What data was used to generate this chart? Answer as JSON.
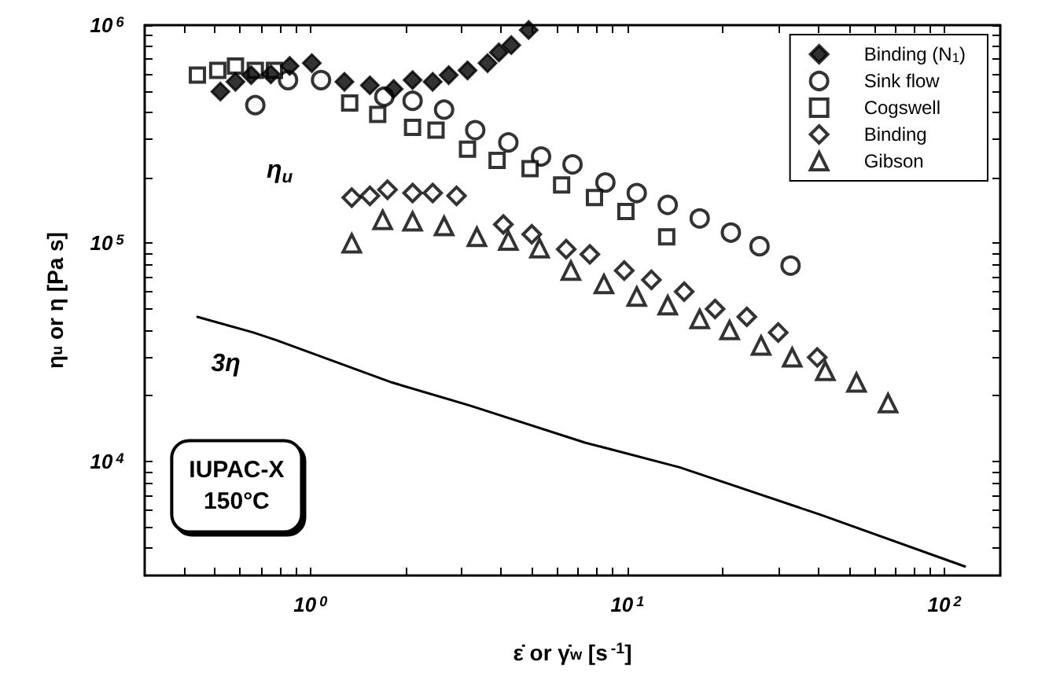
{
  "chart_data": {
    "type": "scatter",
    "xlabel": "ε̇ or γ̇$_{w}$ [s$^{-1}$]",
    "ylabel": "η$_{u}$ or η [Pa s]",
    "annotations": [
      "η$_{u}$",
      "IUPAC-X\n150°C"
    ],
    "log": "xy",
    "grid": false,
    "legend": "top right",
    "xlim": [
      0.3,
      150
    ],
    "ylim": [
      3000,
      1000000
    ],
    "xticks": [
      {
        "value": 0.4,
        "label": null
      },
      {
        "value": 0.5,
        "label": null
      },
      {
        "value": 0.6,
        "label": null
      },
      {
        "value": 0.7,
        "label": null
      },
      {
        "value": 0.8,
        "label": null
      },
      {
        "value": 0.9,
        "label": null
      },
      {
        "value": 1,
        "label": "10$^{0}$"
      },
      {
        "value": 2,
        "label": null
      },
      {
        "value": 3,
        "label": null
      },
      {
        "value": 4,
        "label": null
      },
      {
        "value": 5,
        "label": null
      },
      {
        "value": 6,
        "label": null
      },
      {
        "value": 7,
        "label": null
      },
      {
        "value": 8,
        "label": null
      },
      {
        "value": 9,
        "label": null
      },
      {
        "value": 10,
        "label": "10$^{1}$"
      },
      {
        "value": 20,
        "label": null
      },
      {
        "value": 30,
        "label": null
      },
      {
        "value": 40,
        "label": null
      },
      {
        "value": 50,
        "label": null
      },
      {
        "value": 60,
        "label": null
      },
      {
        "value": 70,
        "label": null
      },
      {
        "value": 80,
        "label": null
      },
      {
        "value": 90,
        "label": null
      },
      {
        "value": 100,
        "label": "10$^{2}$"
      }
    ],
    "yticks": [
      {
        "value": 4000,
        "label": null
      },
      {
        "value": 5000,
        "label": null
      },
      {
        "value": 6000,
        "label": null
      },
      {
        "value": 7000,
        "label": null
      },
      {
        "value": 8000,
        "label": null
      },
      {
        "value": 9000,
        "label": null
      },
      {
        "value": 10000,
        "label": "10$^{4}$"
      },
      {
        "value": 20000,
        "label": null
      },
      {
        "value": 30000,
        "label": null
      },
      {
        "value": 40000,
        "label": null
      },
      {
        "value": 50000,
        "label": null
      },
      {
        "value": 60000,
        "label": null
      },
      {
        "value": 70000,
        "label": null
      },
      {
        "value": 80000,
        "label": null
      },
      {
        "value": 90000,
        "label": null
      },
      {
        "value": 100000,
        "label": "10$^{5}$"
      },
      {
        "value": 200000,
        "label": null
      },
      {
        "value": 300000,
        "label": null
      },
      {
        "value": 400000,
        "label": null
      },
      {
        "value": 500000,
        "label": null
      },
      {
        "value": 600000,
        "label": null
      },
      {
        "value": 700000,
        "label": null
      },
      {
        "value": 800000,
        "label": null
      },
      {
        "value": 900000,
        "label": null
      },
      {
        "value": 1000000,
        "label": "10$^{6}$"
      }
    ],
    "series": [
      {
        "name": "Binding (N$_{1}$)",
        "color": "#000000",
        "marker": "diamond",
        "x": [
          0.52,
          0.58,
          0.65,
          0.75,
          0.86,
          1.01,
          1.28,
          1.54,
          1.83,
          2.1,
          2.43,
          2.73,
          3.13,
          3.62,
          3.93,
          4.3,
          4.88
        ],
        "values": [
          496000,
          550000,
          590000,
          595000,
          650000,
          670000,
          550000,
          530000,
          510000,
          560000,
          550000,
          590000,
          620000,
          670000,
          750000,
          810000,
          950000
        ]
      },
      {
        "name": "Sink flow",
        "color": "#000000",
        "marker": "circle",
        "x": [
          0.67,
          0.85,
          1.08,
          1.71,
          2.1,
          2.64,
          3.31,
          4.21,
          5.34,
          6.71,
          8.52,
          10.7,
          13.4,
          16.9,
          21.2,
          26.1,
          32.7
        ],
        "values": [
          430000,
          560000,
          560000,
          470000,
          450000,
          410000,
          330000,
          290000,
          250000,
          230000,
          190000,
          170000,
          150000,
          130000,
          112000,
          97000,
          79000
        ]
      },
      {
        "name": "Cogswell",
        "color": "#000000",
        "marker": "square",
        "x": [
          0.44,
          0.51,
          0.58,
          0.67,
          0.77,
          1.33,
          1.63,
          2.1,
          2.49,
          3.13,
          3.88,
          4.93,
          6.2,
          7.87,
          9.89,
          13.3
        ],
        "values": [
          590000,
          620000,
          650000,
          620000,
          620000,
          440000,
          390000,
          340000,
          330000,
          270000,
          240000,
          220000,
          185000,
          162000,
          140000,
          107000
        ]
      },
      {
        "name": "Binding",
        "color": "#000000",
        "marker": "diamond",
        "x": [
          1.35,
          1.54,
          1.75,
          2.1,
          2.43,
          2.89,
          4.06,
          4.99,
          6.41,
          7.61,
          9.77,
          11.9,
          15.1,
          18.9,
          23.8,
          29.9,
          39.7
        ],
        "values": [
          162000,
          165000,
          176000,
          170000,
          170000,
          165000,
          122000,
          110000,
          94000,
          89000,
          75000,
          68000,
          60000,
          50000,
          46000,
          39000,
          30000
        ]
      },
      {
        "name": "Gibson",
        "color": "#000000",
        "marker": "triangle",
        "x": [
          1.35,
          1.69,
          2.1,
          2.64,
          3.35,
          4.21,
          5.28,
          6.63,
          8.43,
          10.7,
          13.4,
          16.9,
          21.0,
          26.4,
          33.1,
          42.1,
          52.8,
          66.4
        ],
        "values": [
          100000,
          128000,
          126000,
          120000,
          107000,
          103000,
          95000,
          75000,
          65000,
          57000,
          52000,
          45000,
          40000,
          34000,
          30000,
          26000,
          23000,
          18500
        ]
      },
      {
        "name": "3η",
        "type": "line",
        "color": "#000000",
        "marker": "none",
        "line_style": "solid",
        "x": [
          0.44,
          0.66,
          0.78,
          1.81,
          3.2,
          7.35,
          14.6,
          40.6,
          116
        ],
        "values": [
          46000,
          39000,
          36000,
          23000,
          18000,
          12200,
          9400,
          5700,
          3300
        ]
      }
    ]
  }
}
